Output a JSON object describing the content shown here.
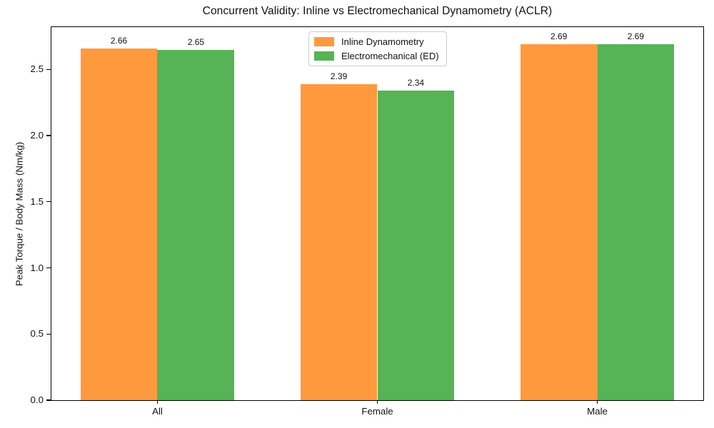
{
  "chart_data": {
    "type": "bar",
    "title": "Concurrent Validity: Inline vs Electromechanical Dynamometry (ACLR)",
    "xlabel": "",
    "ylabel": "Peak Torque / Body Mass (Nm/kg)",
    "categories": [
      "All",
      "Female",
      "Male"
    ],
    "series": [
      {
        "name": "Inline Dynamometry",
        "color": "#FF993E",
        "values": [
          2.66,
          2.39,
          2.69
        ]
      },
      {
        "name": "Electromechanical (ED)",
        "color": "#56B356",
        "values": [
          2.65,
          2.34,
          2.69
        ]
      }
    ],
    "value_labels": [
      [
        "2.66",
        "2.39",
        "2.69"
      ],
      [
        "2.65",
        "2.34",
        "2.69"
      ]
    ],
    "yticks": [
      0.0,
      0.5,
      1.0,
      1.5,
      2.0,
      2.5
    ],
    "ytick_labels": [
      "0.0",
      "0.5",
      "1.0",
      "1.5",
      "2.0",
      "2.5"
    ],
    "ylim": [
      0,
      2.82
    ],
    "xlim": [
      -0.482,
      2.482
    ],
    "bar_width": 0.35,
    "grid": false,
    "legend_position": "upper center",
    "colors": {
      "spine": "#000000",
      "text": "#111111",
      "legend_border": "#cccccc",
      "background": "#ffffff"
    }
  }
}
